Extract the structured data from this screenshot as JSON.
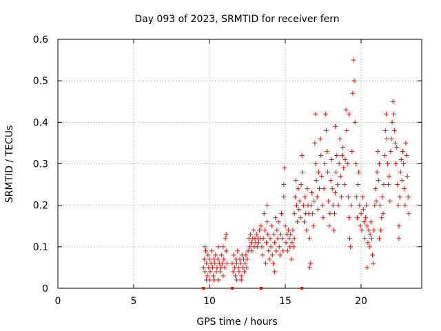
{
  "chart_data": {
    "type": "scatter",
    "title": "Day 093 of 2023, SRMTID for receiver fern",
    "xlabel": "GPS time / hours",
    "ylabel": "SRMTID / TECUs",
    "xlim": [
      0,
      24
    ],
    "ylim": [
      0,
      0.6
    ],
    "xticks": [
      0,
      5,
      10,
      15,
      20
    ],
    "yticks": [
      0,
      0.1,
      0.2,
      0.3,
      0.4,
      0.5,
      0.6
    ],
    "xtick_labels": [
      "0",
      "5",
      "10",
      "15",
      "20"
    ],
    "ytick_labels": [
      "0",
      "0.1",
      "0.2",
      "0.3",
      "0.4",
      "0.5",
      "0.6"
    ],
    "grid": true,
    "marker": "+",
    "color": "#ff0000",
    "series": [
      {
        "name": "SRMTID",
        "points": [
          [
            9.6,
            0.05
          ],
          [
            9.65,
            0.07
          ],
          [
            9.7,
            0.04
          ],
          [
            9.75,
            0.09
          ],
          [
            9.8,
            0.06
          ],
          [
            9.85,
            0.03
          ],
          [
            9.9,
            0.08
          ],
          [
            9.95,
            0.05
          ],
          [
            10.0,
            0.07
          ],
          [
            10.05,
            0.04
          ],
          [
            10.1,
            0.06
          ],
          [
            10.15,
            0.09
          ],
          [
            10.2,
            0.05
          ],
          [
            10.25,
            0.03
          ],
          [
            10.3,
            0.07
          ],
          [
            10.35,
            0.06
          ],
          [
            10.4,
            0.08
          ],
          [
            10.45,
            0.04
          ],
          [
            10.5,
            0.05
          ],
          [
            10.55,
            0.07
          ],
          [
            10.6,
            0.1
          ],
          [
            10.65,
            0.06
          ],
          [
            10.7,
            0.04
          ],
          [
            10.75,
            0.05
          ],
          [
            10.8,
            0.08
          ],
          [
            10.85,
            0.06
          ],
          [
            10.9,
            0.03
          ],
          [
            10.95,
            0.07
          ],
          [
            11.0,
            0.05
          ],
          [
            11.05,
            0.12
          ],
          [
            11.1,
            0.09
          ],
          [
            11.15,
            0.06
          ],
          [
            9.7,
            0.1
          ],
          [
            9.8,
            0.02
          ],
          [
            10.0,
            0.02
          ],
          [
            10.3,
            0.02
          ],
          [
            10.6,
            0.02
          ],
          [
            10.9,
            0.1
          ],
          [
            11.1,
            0.13
          ],
          [
            11.5,
            0.06
          ],
          [
            11.55,
            0.04
          ],
          [
            11.6,
            0.08
          ],
          [
            11.65,
            0.05
          ],
          [
            11.7,
            0.03
          ],
          [
            11.75,
            0.07
          ],
          [
            11.8,
            0.06
          ],
          [
            11.85,
            0.09
          ],
          [
            11.9,
            0.05
          ],
          [
            11.95,
            0.04
          ],
          [
            12.0,
            0.07
          ],
          [
            12.05,
            0.06
          ],
          [
            12.1,
            0.03
          ],
          [
            12.15,
            0.08
          ],
          [
            12.2,
            0.05
          ],
          [
            12.25,
            0.07
          ],
          [
            12.3,
            0.04
          ],
          [
            12.35,
            0.06
          ],
          [
            12.4,
            0.08
          ],
          [
            12.45,
            0.05
          ],
          [
            12.5,
            0.07
          ],
          [
            12.55,
            0.09
          ],
          [
            12.6,
            0.12
          ],
          [
            12.65,
            0.1
          ],
          [
            12.7,
            0.13
          ],
          [
            12.75,
            0.11
          ],
          [
            12.8,
            0.09
          ],
          [
            12.85,
            0.12
          ],
          [
            12.9,
            0.14
          ],
          [
            12.95,
            0.1
          ],
          [
            13.0,
            0.12
          ],
          [
            13.05,
            0.11
          ],
          [
            13.1,
            0.13
          ],
          [
            13.15,
            0.1
          ],
          [
            13.2,
            0.12
          ],
          [
            13.25,
            0.11
          ],
          [
            13.3,
            0.14
          ],
          [
            13.35,
            0.12
          ],
          [
            11.8,
            0.02
          ],
          [
            12.1,
            0.02
          ],
          [
            13.4,
            0.15
          ],
          [
            13.45,
            0.1
          ],
          [
            13.5,
            0.08
          ],
          [
            13.55,
            0.12
          ],
          [
            13.6,
            0.18
          ],
          [
            13.65,
            0.14
          ],
          [
            13.7,
            0.06
          ],
          [
            13.75,
            0.11
          ],
          [
            13.8,
            0.16
          ],
          [
            13.85,
            0.13
          ],
          [
            13.9,
            0.09
          ],
          [
            13.95,
            0.07
          ],
          [
            14.0,
            0.12
          ],
          [
            14.05,
            0.1
          ],
          [
            14.1,
            0.15
          ],
          [
            14.15,
            0.08
          ],
          [
            14.2,
            0.06
          ],
          [
            14.25,
            0.13
          ],
          [
            14.3,
            0.11
          ],
          [
            14.35,
            0.17
          ],
          [
            14.4,
            0.09
          ],
          [
            14.45,
            0.14
          ],
          [
            14.5,
            0.12
          ],
          [
            14.55,
            0.16
          ],
          [
            14.6,
            0.1
          ],
          [
            14.65,
            0.08
          ],
          [
            14.7,
            0.13
          ],
          [
            14.75,
            0.18
          ],
          [
            14.8,
            0.12
          ],
          [
            14.85,
            0.09
          ],
          [
            14.9,
            0.25
          ],
          [
            14.95,
            0.29
          ],
          [
            15.0,
            0.15
          ],
          [
            15.05,
            0.11
          ],
          [
            15.1,
            0.13
          ],
          [
            15.15,
            0.09
          ],
          [
            15.2,
            0.14
          ],
          [
            15.25,
            0.12
          ],
          [
            15.3,
            0.1
          ],
          [
            15.35,
            0.13
          ],
          [
            15.4,
            0.07
          ],
          [
            15.45,
            0.11
          ],
          [
            15.5,
            0.14
          ],
          [
            15.55,
            0.1
          ],
          [
            15.6,
            0.12
          ],
          [
            13.8,
            0.2
          ],
          [
            14.3,
            0.04
          ],
          [
            14.9,
            0.22
          ],
          [
            15.6,
            0.18
          ],
          [
            15.65,
            0.22
          ],
          [
            15.7,
            0.26
          ],
          [
            15.75,
            0.2
          ],
          [
            15.8,
            0.16
          ],
          [
            15.85,
            0.24
          ],
          [
            15.9,
            0.19
          ],
          [
            15.95,
            0.21
          ],
          [
            16.0,
            0.17
          ],
          [
            16.05,
            0.25
          ],
          [
            16.1,
            0.32
          ],
          [
            16.15,
            0.28
          ],
          [
            16.2,
            0.2
          ],
          [
            16.25,
            0.16
          ],
          [
            16.3,
            0.22
          ],
          [
            16.35,
            0.18
          ],
          [
            16.4,
            0.14
          ],
          [
            16.45,
            0.24
          ],
          [
            16.5,
            0.2
          ],
          [
            16.55,
            0.18
          ],
          [
            16.6,
            0.12
          ],
          [
            16.65,
            0.06
          ],
          [
            16.7,
            0.2
          ],
          [
            16.75,
            0.23
          ],
          [
            16.8,
            0.18
          ],
          [
            16.85,
            0.15
          ],
          [
            16.9,
            0.21
          ],
          [
            16.95,
            0.35
          ],
          [
            17.0,
            0.3
          ],
          [
            17.05,
            0.26
          ],
          [
            17.1,
            0.22
          ],
          [
            17.15,
            0.19
          ],
          [
            17.2,
            0.28
          ],
          [
            17.25,
            0.24
          ],
          [
            17.3,
            0.36
          ],
          [
            17.35,
            0.32
          ],
          [
            17.4,
            0.27
          ],
          [
            17.45,
            0.2
          ],
          [
            17.5,
            0.17
          ],
          [
            17.55,
            0.24
          ],
          [
            17.6,
            0.3
          ],
          [
            17.65,
            0.42
          ],
          [
            17.7,
            0.38
          ],
          [
            17.75,
            0.33
          ],
          [
            17.8,
            0.28
          ],
          [
            17.85,
            0.21
          ],
          [
            17.9,
            0.15
          ],
          [
            17.95,
            0.18
          ],
          [
            18.0,
            0.26
          ],
          [
            18.05,
            0.31
          ],
          [
            18.1,
            0.24
          ],
          [
            18.15,
            0.2
          ],
          [
            18.2,
            0.14
          ],
          [
            18.25,
            0.18
          ],
          [
            18.3,
            0.23
          ],
          [
            18.35,
            0.28
          ],
          [
            18.4,
            0.32
          ],
          [
            18.45,
            0.25
          ],
          [
            18.5,
            0.2
          ],
          [
            18.55,
            0.3
          ],
          [
            18.6,
            0.36
          ],
          [
            18.65,
            0.27
          ],
          [
            18.7,
            0.22
          ],
          [
            18.75,
            0.32
          ],
          [
            18.8,
            0.34
          ],
          [
            18.85,
            0.29
          ],
          [
            18.9,
            0.25
          ],
          [
            18.95,
            0.31
          ],
          [
            19.0,
            0.43
          ],
          [
            19.05,
            0.38
          ],
          [
            19.1,
            0.3
          ],
          [
            19.15,
            0.22
          ],
          [
            19.2,
            0.17
          ],
          [
            19.25,
            0.12
          ],
          [
            19.3,
            0.1
          ],
          [
            19.35,
            0.2
          ],
          [
            19.4,
            0.33
          ],
          [
            19.45,
            0.47
          ],
          [
            19.5,
            0.55
          ],
          [
            19.55,
            0.5
          ],
          [
            19.6,
            0.4
          ],
          [
            19.65,
            0.3
          ],
          [
            19.7,
            0.22
          ],
          [
            19.75,
            0.17
          ],
          [
            19.8,
            0.25
          ],
          [
            19.85,
            0.28
          ],
          [
            19.9,
            0.2
          ],
          [
            19.95,
            0.15
          ],
          [
            20.0,
            0.18
          ],
          [
            20.05,
            0.14
          ],
          [
            20.1,
            0.22
          ],
          [
            20.15,
            0.19
          ],
          [
            20.2,
            0.16
          ],
          [
            20.25,
            0.12
          ],
          [
            20.3,
            0.17
          ],
          [
            20.35,
            0.2
          ],
          [
            20.4,
            0.15
          ],
          [
            20.45,
            0.11
          ],
          [
            20.5,
            0.14
          ],
          [
            20.55,
            0.1
          ],
          [
            20.6,
            0.13
          ],
          [
            20.65,
            0.16
          ],
          [
            20.7,
            0.12
          ],
          [
            20.75,
            0.08
          ],
          [
            20.8,
            0.06
          ],
          [
            20.85,
            0.14
          ],
          [
            20.9,
            0.2
          ],
          [
            20.95,
            0.24
          ],
          [
            21.0,
            0.21
          ],
          [
            21.05,
            0.28
          ],
          [
            21.1,
            0.33
          ],
          [
            21.15,
            0.26
          ],
          [
            21.2,
            0.3
          ],
          [
            21.25,
            0.2
          ],
          [
            21.3,
            0.14
          ],
          [
            21.35,
            0.17
          ],
          [
            21.4,
            0.22
          ],
          [
            21.45,
            0.18
          ],
          [
            21.5,
            0.25
          ],
          [
            21.55,
            0.32
          ],
          [
            21.6,
            0.38
          ],
          [
            21.65,
            0.42
          ],
          [
            21.7,
            0.36
          ],
          [
            21.75,
            0.3
          ],
          [
            21.8,
            0.25
          ],
          [
            21.85,
            0.27
          ],
          [
            21.9,
            0.21
          ],
          [
            21.95,
            0.33
          ],
          [
            22.0,
            0.36
          ],
          [
            22.05,
            0.4
          ],
          [
            22.1,
            0.45
          ],
          [
            22.15,
            0.42
          ],
          [
            22.2,
            0.38
          ],
          [
            22.25,
            0.35
          ],
          [
            22.3,
            0.3
          ],
          [
            22.35,
            0.34
          ],
          [
            22.4,
            0.25
          ],
          [
            22.45,
            0.2
          ],
          [
            22.5,
            0.15
          ],
          [
            22.55,
            0.22
          ],
          [
            22.6,
            0.28
          ],
          [
            22.65,
            0.31
          ],
          [
            22.7,
            0.26
          ],
          [
            22.75,
            0.33
          ],
          [
            22.8,
            0.3
          ],
          [
            22.85,
            0.24
          ],
          [
            22.9,
            0.2
          ],
          [
            22.95,
            0.35
          ],
          [
            23.0,
            0.32
          ],
          [
            23.05,
            0.27
          ],
          [
            23.1,
            0.22
          ],
          [
            23.15,
            0.18
          ],
          [
            17.0,
            0.42
          ],
          [
            18.3,
            0.39
          ],
          [
            19.2,
            0.42
          ],
          [
            20.4,
            0.05
          ],
          [
            16.6,
            0.05
          ],
          [
            21.2,
            0.12
          ],
          [
            22.5,
            0.12
          ]
        ]
      }
    ],
    "axis_markers_hours": [
      9.6,
      11.5,
      13.4,
      16.1
    ]
  }
}
